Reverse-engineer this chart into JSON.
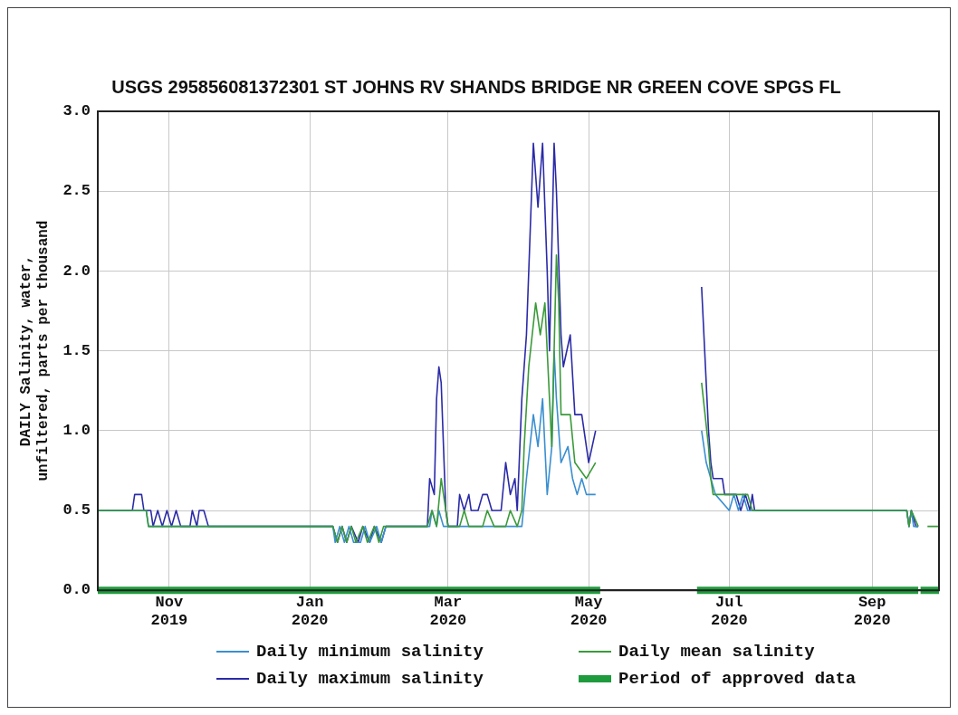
{
  "chart_data": {
    "type": "line",
    "title": "USGS 295856081372301 ST JOHNS RV SHANDS BRIDGE NR GREEN COVE SPGS FL",
    "ylabel": "DAILY Salinity, water, unfiltered, parts per thousand",
    "xlim": [
      "2019-10-01",
      "2020-09-30"
    ],
    "xticks": [
      {
        "value": "2019-11-01",
        "label": "Nov 2019"
      },
      {
        "value": "2020-01-01",
        "label": "Jan 2020"
      },
      {
        "value": "2020-03-01",
        "label": "Mar 2020"
      },
      {
        "value": "2020-05-01",
        "label": "May 2020"
      },
      {
        "value": "2020-07-01",
        "label": "Jul 2020"
      },
      {
        "value": "2020-09-01",
        "label": "Sep 2020"
      }
    ],
    "ylim": [
      0,
      3
    ],
    "yticks": [
      {
        "value": 0,
        "label": "0.0"
      },
      0.5,
      {
        "value": 1,
        "label": "1.0"
      },
      1.5,
      {
        "value": 2,
        "label": "2.0"
      },
      2.5,
      {
        "value": 3,
        "label": "3.0"
      }
    ],
    "grid": true,
    "legend": "bottom",
    "marker": "none",
    "series": [
      {
        "name": "Daily minimum salinity",
        "color": "#3a8fd0",
        "x": [
          "2019-10-01",
          "2019-10-22",
          "2019-10-23",
          "2020-01-11",
          "2020-01-12",
          "2020-01-14",
          "2020-01-16",
          "2020-01-18",
          "2020-01-20",
          "2020-01-23",
          "2020-01-25",
          "2020-01-27",
          "2020-01-30",
          "2020-02-01",
          "2020-02-03",
          "2020-02-22",
          "2020-02-23",
          "2020-02-25",
          "2020-02-26",
          "2020-02-28",
          "2020-04-02",
          "2020-04-04",
          "2020-04-07",
          "2020-04-09",
          "2020-04-11",
          "2020-04-13",
          "2020-04-15",
          "2020-04-16",
          "2020-04-17",
          "2020-04-19",
          "2020-04-22",
          "2020-04-24",
          "2020-04-26",
          "2020-04-28",
          "2020-04-30",
          "2020-05-04",
          "2020-05-20",
          "2020-06-19",
          "2020-06-21",
          "2020-06-23",
          "2020-06-25",
          "2020-07-01",
          "2020-07-03",
          "2020-07-05",
          "2020-07-07",
          "2020-07-09",
          "2020-09-16",
          "2020-09-17",
          "2020-09-18",
          "2020-09-19",
          "2020-09-21"
        ],
        "values": [
          0.5,
          0.5,
          0.4,
          0.4,
          0.3,
          0.4,
          0.3,
          0.4,
          0.3,
          0.3,
          0.4,
          0.3,
          0.4,
          0.3,
          0.4,
          0.4,
          0.5,
          0.4,
          0.5,
          0.4,
          0.4,
          0.7,
          1.1,
          0.9,
          1.2,
          0.6,
          0.9,
          1.5,
          1.2,
          0.8,
          0.9,
          0.7,
          0.6,
          0.7,
          0.6,
          0.6,
          null,
          1.0,
          0.8,
          0.7,
          0.6,
          0.5,
          0.6,
          0.5,
          0.6,
          0.5,
          0.5,
          0.4,
          0.5,
          0.4,
          0.4
        ]
      },
      {
        "name": "Daily mean salinity",
        "color": "#3a9a3a",
        "x": [
          "2019-10-01",
          "2019-10-22",
          "2019-10-23",
          "2020-01-11",
          "2020-01-13",
          "2020-01-15",
          "2020-01-17",
          "2020-01-19",
          "2020-01-21",
          "2020-01-24",
          "2020-01-26",
          "2020-01-29",
          "2020-01-31",
          "2020-02-02",
          "2020-02-21",
          "2020-02-23",
          "2020-02-25",
          "2020-02-27",
          "2020-03-01",
          "2020-03-06",
          "2020-03-08",
          "2020-03-10",
          "2020-03-16",
          "2020-03-18",
          "2020-03-21",
          "2020-03-26",
          "2020-03-28",
          "2020-03-31",
          "2020-04-02",
          "2020-04-03",
          "2020-04-05",
          "2020-04-08",
          "2020-04-10",
          "2020-04-12",
          "2020-04-14",
          "2020-04-15",
          "2020-04-17",
          "2020-04-18",
          "2020-04-19",
          "2020-04-23",
          "2020-04-25",
          "2020-04-30",
          "2020-05-04",
          "2020-05-20",
          "2020-06-19",
          "2020-06-22",
          "2020-06-23",
          "2020-06-24",
          "2020-07-09",
          "2020-07-11",
          "2020-09-16",
          "2020-09-17",
          "2020-09-18",
          "2020-09-21",
          "2020-09-23",
          "2020-09-25",
          "2020-09-30"
        ],
        "values": [
          0.5,
          0.5,
          0.4,
          0.4,
          0.3,
          0.4,
          0.3,
          0.4,
          0.3,
          0.4,
          0.3,
          0.4,
          0.3,
          0.4,
          0.4,
          0.5,
          0.4,
          0.7,
          0.4,
          0.4,
          0.5,
          0.4,
          0.4,
          0.5,
          0.4,
          0.4,
          0.5,
          0.4,
          0.5,
          0.9,
          1.4,
          1.8,
          1.6,
          1.8,
          1.2,
          0.9,
          2.1,
          1.8,
          1.1,
          1.1,
          0.8,
          0.7,
          0.8,
          null,
          1.3,
          0.9,
          0.7,
          0.6,
          0.6,
          0.5,
          0.5,
          0.4,
          0.5,
          0.4,
          null,
          0.4,
          0.4
        ]
      },
      {
        "name": "Daily maximum salinity",
        "color": "#2b2ba8",
        "x": [
          "2019-10-01",
          "2019-10-16",
          "2019-10-17",
          "2019-10-20",
          "2019-10-21",
          "2019-10-24",
          "2019-10-25",
          "2019-10-27",
          "2019-10-29",
          "2019-10-31",
          "2019-11-02",
          "2019-11-04",
          "2019-11-06",
          "2019-11-10",
          "2019-11-11",
          "2019-11-13",
          "2019-11-14",
          "2019-11-16",
          "2019-11-18",
          "2020-01-11",
          "2020-01-13",
          "2020-01-15",
          "2020-01-17",
          "2020-01-19",
          "2020-01-22",
          "2020-01-24",
          "2020-01-27",
          "2020-01-29",
          "2020-02-01",
          "2020-02-03",
          "2020-02-21",
          "2020-02-22",
          "2020-02-24",
          "2020-02-25",
          "2020-02-26",
          "2020-02-27",
          "2020-02-29",
          "2020-03-01",
          "2020-03-05",
          "2020-03-06",
          "2020-03-08",
          "2020-03-10",
          "2020-03-11",
          "2020-03-14",
          "2020-03-16",
          "2020-03-18",
          "2020-03-20",
          "2020-03-24",
          "2020-03-26",
          "2020-03-28",
          "2020-03-30",
          "2020-03-31",
          "2020-04-02",
          "2020-04-04",
          "2020-04-06",
          "2020-04-07",
          "2020-04-09",
          "2020-04-11",
          "2020-04-13",
          "2020-04-14",
          "2020-04-16",
          "2020-04-17",
          "2020-04-19",
          "2020-04-20",
          "2020-04-23",
          "2020-04-25",
          "2020-04-28",
          "2020-05-01",
          "2020-05-04",
          "2020-05-20",
          "2020-06-19",
          "2020-06-20",
          "2020-06-21",
          "2020-06-22",
          "2020-06-23",
          "2020-06-24",
          "2020-06-28",
          "2020-06-29",
          "2020-07-04",
          "2020-07-06",
          "2020-07-08",
          "2020-07-10",
          "2020-07-11",
          "2020-07-12",
          "2020-09-16",
          "2020-09-17",
          "2020-09-18",
          "2020-09-20",
          "2020-09-21"
        ],
        "values": [
          0.5,
          0.5,
          0.6,
          0.6,
          0.5,
          0.5,
          0.4,
          0.5,
          0.4,
          0.5,
          0.4,
          0.5,
          0.4,
          0.4,
          0.5,
          0.4,
          0.5,
          0.5,
          0.4,
          0.4,
          0.3,
          0.4,
          0.3,
          0.4,
          0.3,
          0.4,
          0.3,
          0.4,
          0.3,
          0.4,
          0.4,
          0.7,
          0.6,
          1.2,
          1.4,
          1.3,
          0.5,
          0.4,
          0.4,
          0.6,
          0.5,
          0.6,
          0.5,
          0.5,
          0.6,
          0.6,
          0.5,
          0.5,
          0.8,
          0.6,
          0.7,
          0.5,
          1.2,
          1.6,
          2.4,
          2.8,
          2.4,
          2.8,
          2.0,
          1.5,
          2.8,
          2.5,
          1.6,
          1.4,
          1.6,
          1.1,
          1.1,
          0.8,
          1.0,
          null,
          1.9,
          1.6,
          1.3,
          1.0,
          0.8,
          0.7,
          0.7,
          0.6,
          0.6,
          0.5,
          0.6,
          0.5,
          0.6,
          0.5,
          0.5,
          0.4,
          0.5,
          0.4,
          0.4
        ]
      },
      {
        "name": "Period of approved data",
        "color": "#1e9b3c",
        "x": [
          "2019-10-01",
          "2020-05-06",
          "2020-05-20",
          "2020-06-17",
          "2020-09-21",
          "2020-09-21T12:00",
          "2020-09-22",
          "2020-09-30"
        ],
        "values": [
          0,
          0,
          null,
          0,
          0,
          null,
          0,
          0
        ]
      }
    ]
  }
}
